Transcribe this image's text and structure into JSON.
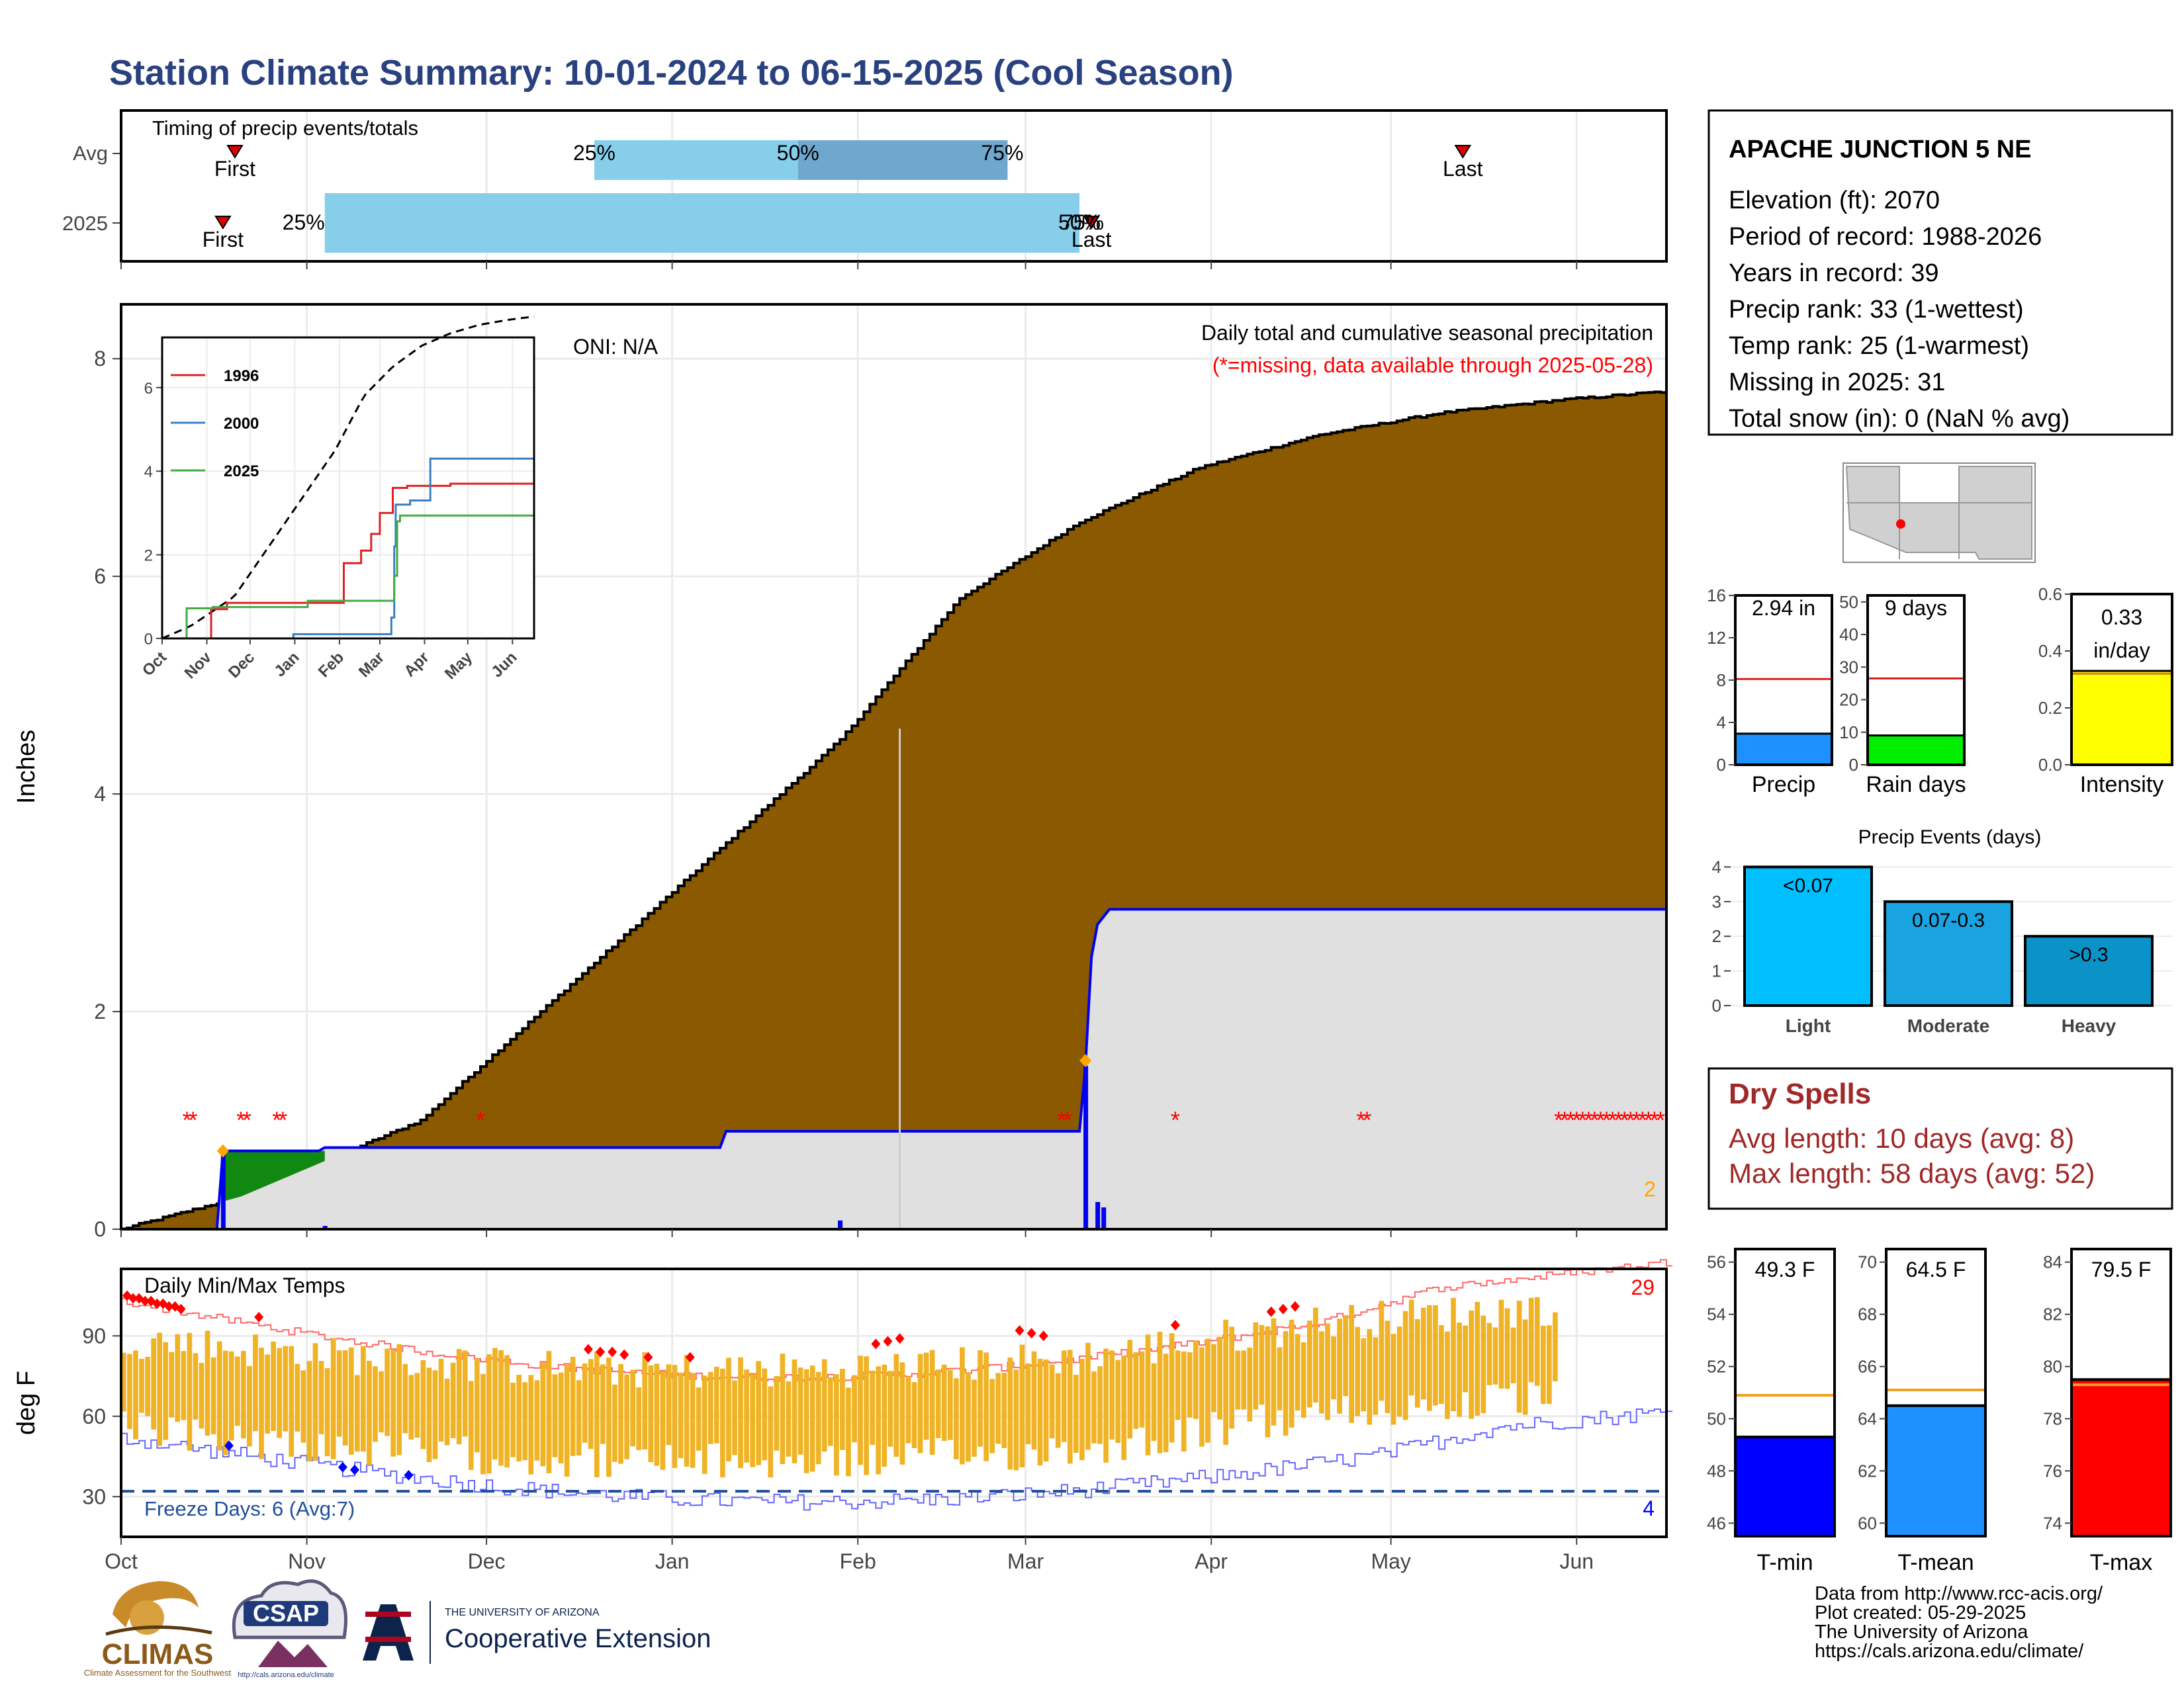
{
  "title": "Station Climate Summary: 10-01-2024 to 06-15-2025 (Cool Season)",
  "colors": {
    "title": "#2a4180",
    "brown": "#8b5a00",
    "green": "#118811",
    "blue": "#0000ee",
    "gray": "#e0e0e0",
    "q_light": "#87ceeb",
    "q_dark": "#6fa8cf",
    "orange": "#ffa500",
    "red": "#ff0000",
    "temp_bar": "#efb325"
  },
  "months": [
    "Oct",
    "Nov",
    "Dec",
    "Jan",
    "Feb",
    "Mar",
    "Apr",
    "May",
    "Jun"
  ],
  "timing": {
    "caption": "Timing of precip events/totals",
    "rows": [
      "Avg",
      "2025"
    ],
    "avg": {
      "first_day": 19,
      "last_day": 224,
      "q25_day": 79,
      "q50_day": 113,
      "q75_day": 148,
      "first_label": "First",
      "last_label": "Last",
      "q25": "25%",
      "q50": "50%",
      "q75": "75%"
    },
    "y2025": {
      "first_day": 17,
      "last_day": 162,
      "q25_day": 34,
      "q50_day": 160,
      "q75_day": 160,
      "first_label": "First",
      "last_label": "Last",
      "q25": "25%",
      "q50": "50%",
      "q75": "75%"
    }
  },
  "main": {
    "ylabel": "Inches",
    "yticks": [
      0,
      2,
      4,
      6,
      8
    ],
    "ymax": 8.5,
    "oni": "ONI: N/A",
    "title_line1": "Daily total and cumulative seasonal precipitation",
    "title_line2": "(*=missing, data available through 2025-05-28)",
    "corner_count": "2"
  },
  "inset": {
    "series": [
      {
        "name": "1996",
        "color": "#dd2222"
      },
      {
        "name": "2000",
        "color": "#3a7fc0"
      },
      {
        "name": "2025",
        "color": "#44aa44"
      }
    ],
    "yticks": [
      0,
      2,
      4,
      6
    ],
    "months": [
      "Oct",
      "Nov",
      "Dec",
      "Jan",
      "Feb",
      "Mar",
      "Apr",
      "May",
      "Jun"
    ]
  },
  "station": {
    "name": "APACHE JUNCTION 5 NE",
    "lines": [
      "Elevation (ft): 2070",
      "Period of record: 1988-2026",
      "Years in record: 39",
      "Precip rank: 33 (1-wettest)",
      "Temp rank: 25 (1-warmest)",
      "Missing in 2025: 31",
      "Total snow (in): 0 (NaN % avg)"
    ]
  },
  "mini": {
    "precip": {
      "label": "Precip",
      "value": 2.94,
      "avg": 8.1,
      "max": 16,
      "ticks": [
        0,
        4,
        8,
        12,
        16
      ],
      "text": "2.94 in",
      "color": "#1e90ff"
    },
    "raindays": {
      "label": "Rain days",
      "value": 9,
      "avg": 26.5,
      "max": 52,
      "ticks": [
        0,
        10,
        20,
        30,
        40,
        50
      ],
      "text": "9 days",
      "color": "#00ee00"
    },
    "intensity": {
      "label": "Intensity",
      "value": 0.33,
      "avg": 0.32,
      "max": 0.6,
      "ticks": [
        "0.0",
        "0.2",
        "0.4",
        "0.6"
      ],
      "text1": "0.33",
      "text2": "in/day",
      "color": "#ffff00"
    }
  },
  "events": {
    "title": "Precip Events (days)",
    "bars": [
      {
        "label": "Light",
        "value": 4,
        "text": "<0.07",
        "color": "#00bfff"
      },
      {
        "label": "Moderate",
        "value": 3,
        "text": "0.07-0.3",
        "color": "#19a3e0"
      },
      {
        "label": "Heavy",
        "value": 2,
        "text": ">0.3",
        "color": "#0b93c8"
      }
    ],
    "ticks": [
      0,
      1,
      2,
      3,
      4
    ]
  },
  "dry": {
    "title": "Dry Spells",
    "line1": "Avg length: 10 days (avg: 8)",
    "line2": "Max length: 58 days (avg: 52)"
  },
  "temps": {
    "caption": "Daily Min/Max Temps",
    "ylabel": "deg F",
    "yticks": [
      30,
      60,
      90
    ],
    "freeze": "Freeze Days: 6 (Avg:7)",
    "hot_count": "29",
    "cold_count": "4"
  },
  "tbars": {
    "tmin": {
      "label": "T-min",
      "value": 49.3,
      "avg": 50.9,
      "min": 45.5,
      "max": 56.5,
      "ticks": [
        46,
        48,
        50,
        52,
        54,
        56
      ],
      "text": "49.3 F",
      "color": "#0000ff"
    },
    "tmean": {
      "label": "T-mean",
      "value": 64.5,
      "avg": 65.1,
      "min": 59.5,
      "max": 70.5,
      "ticks": [
        60,
        62,
        64,
        66,
        68,
        70
      ],
      "text": "64.5 F",
      "color": "#1e90ff"
    },
    "tmax": {
      "label": "T-max",
      "value": 79.5,
      "avg": 79.3,
      "min": 73.5,
      "max": 84.5,
      "ticks": [
        74,
        76,
        78,
        80,
        82,
        84
      ],
      "text": "79.5 F",
      "color": "#ff0000"
    }
  },
  "footer": {
    "lines": [
      "Data from http://www.rcc-acis.org/",
      "Plot created: 05-29-2025",
      "The University of Arizona",
      "https://cals.arizona.edu/climate/"
    ],
    "climas": "CLIMAS",
    "climas_sub": "Climate Assessment for the Southwest",
    "csap": "CSAP",
    "csap_url": "http://cals.arizona.edu/climate",
    "ua_small": "THE UNIVERSITY OF ARIZONA",
    "ua_big": "Cooperative Extension"
  },
  "chart_data": [
    {
      "type": "area",
      "title": "Daily total and cumulative seasonal precipitation",
      "ylabel": "Inches",
      "ylim": [
        0,
        8.5
      ],
      "series": [
        {
          "name": "Average cumulative",
          "x_day": [
            0,
            20,
            50,
            80,
            100,
            120,
            140,
            160,
            180,
            200,
            220,
            240,
            258
          ],
          "values": [
            0,
            0.3,
            1.0,
            2.5,
            3.5,
            4.5,
            5.8,
            6.5,
            7.0,
            7.3,
            7.5,
            7.62,
            7.7
          ]
        },
        {
          "name": "2025 cumulative",
          "x_day": [
            0,
            16,
            17,
            33,
            34,
            35,
            100,
            101,
            160,
            161,
            162,
            163,
            165,
            258
          ],
          "values": [
            0,
            0,
            0.72,
            0.72,
            0.75,
            0.75,
            0.75,
            0.9,
            0.9,
            1.5,
            2.5,
            2.8,
            2.94,
            2.94
          ]
        }
      ]
    },
    {
      "type": "bar",
      "title": "Daily Min/Max Temps",
      "ylabel": "deg F",
      "ylim": [
        15,
        115
      ],
      "freeze_line": 32
    }
  ]
}
